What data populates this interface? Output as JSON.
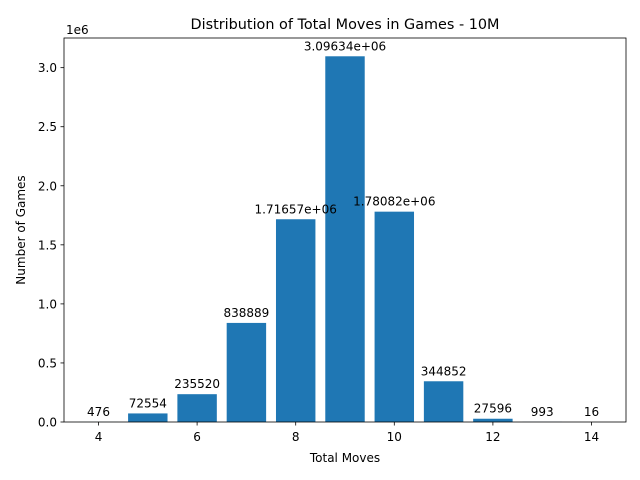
{
  "chart_data": {
    "type": "bar",
    "title": "Distribution of Total Moves in Games - 10M",
    "xlabel": "Total Moves",
    "ylabel": "Number of Games",
    "y_offset_text": "1e6",
    "x": [
      4,
      5,
      6,
      7,
      8,
      9,
      10,
      11,
      12,
      13,
      14
    ],
    "values": [
      476,
      72554,
      235520,
      838889,
      1716570,
      3096340,
      1780820,
      344852,
      27596,
      993,
      16
    ],
    "data_labels": [
      "476",
      "72554",
      "235520",
      "838889",
      "1.71657e+06",
      "3.09634e+06",
      "1.78082e+06",
      "344852",
      "27596",
      "993",
      "16"
    ],
    "bar_color": "#1f77b4",
    "xlim": [
      3.3,
      14.7
    ],
    "ylim": [
      0,
      3251157
    ],
    "x_ticks": [
      4,
      6,
      8,
      10,
      12,
      14
    ],
    "x_tick_labels": [
      "4",
      "6",
      "8",
      "10",
      "12",
      "14"
    ],
    "y_ticks": [
      0,
      500000,
      1000000,
      1500000,
      2000000,
      2500000,
      3000000
    ],
    "y_tick_labels": [
      "0.0",
      "0.5",
      "1.0",
      "1.5",
      "2.0",
      "2.5",
      "3.0"
    ],
    "grid": false,
    "legend": "none"
  }
}
